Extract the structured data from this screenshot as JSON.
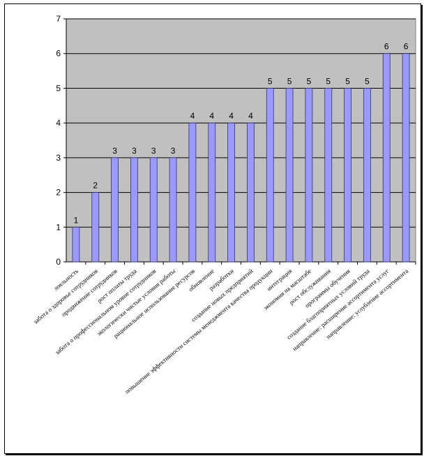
{
  "chart_data": {
    "type": "bar",
    "title": "",
    "xlabel": "",
    "ylabel": "",
    "ylim": [
      0,
      7
    ],
    "yticks": [
      "0",
      "1",
      "2",
      "3",
      "4",
      "5",
      "6",
      "7"
    ],
    "grid": true,
    "legend": "none",
    "categories": [
      "лояльность",
      "забота о здоровье сотрудников",
      "продвижение сотрудников",
      "рост оплаты труда",
      "забота о профессиональном уровне сотрудников",
      "экологически чистые условия работы",
      "рациональное использование ресурсов",
      "обновление",
      "разработки",
      "создание новых предприятий",
      "повышение эффективности системы менеджмента качества продукции",
      "интеграция",
      "экономия на масштабе",
      "рост обслуживания",
      "программы обучения",
      "создание благоприятных условий труда",
      "направление: расширение ассортимента услуг",
      "направление: углубление ассортимента"
    ],
    "values": [
      1,
      2,
      3,
      3,
      3,
      3,
      4,
      4,
      4,
      4,
      5,
      5,
      5,
      5,
      5,
      5,
      6,
      6
    ],
    "colors": {
      "plot_bg": "#c0c0c0",
      "bar": "#9999ff",
      "bar_edge": "#333366"
    }
  }
}
